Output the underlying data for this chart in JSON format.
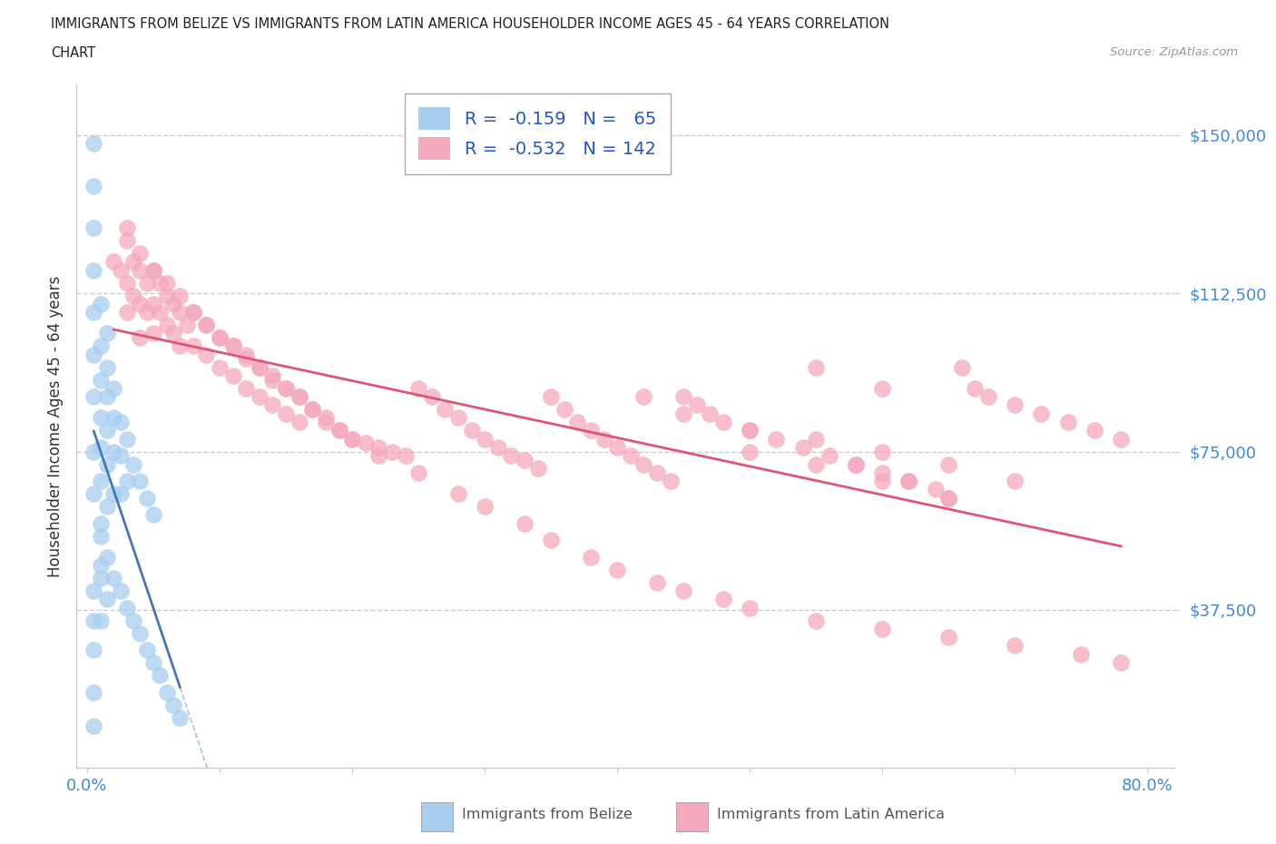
{
  "title_line1": "IMMIGRANTS FROM BELIZE VS IMMIGRANTS FROM LATIN AMERICA HOUSEHOLDER INCOME AGES 45 - 64 YEARS CORRELATION",
  "title_line2": "CHART",
  "source_text": "Source: ZipAtlas.com",
  "ylabel": "Householder Income Ages 45 - 64 years",
  "xlim": [
    -0.008,
    0.82
  ],
  "ylim": [
    0,
    162000
  ],
  "yticks": [
    37500,
    75000,
    112500,
    150000
  ],
  "ytick_labels": [
    "$37,500",
    "$75,000",
    "$112,500",
    "$150,000"
  ],
  "xticks": [
    0.0,
    0.1,
    0.2,
    0.3,
    0.4,
    0.5,
    0.6,
    0.7,
    0.8
  ],
  "xtick_labels": [
    "0.0%",
    "",
    "",
    "",
    "",
    "",
    "",
    "",
    "80.0%"
  ],
  "belize_color": "#a8cef0",
  "latin_color": "#f5a8bc",
  "belize_line_color": "#4477bb",
  "latin_line_color": "#dd5577",
  "legend_belize_R": "-0.159",
  "legend_belize_N": "65",
  "legend_latin_R": "-0.532",
  "legend_latin_N": "142",
  "background_color": "#ffffff",
  "grid_color": "#cccccc",
  "tick_color": "#4488dd",
  "belize_x": [
    0.005,
    0.005,
    0.005,
    0.005,
    0.005,
    0.005,
    0.005,
    0.005,
    0.005,
    0.01,
    0.01,
    0.01,
    0.01,
    0.01,
    0.01,
    0.01,
    0.01,
    0.015,
    0.015,
    0.015,
    0.015,
    0.015,
    0.015,
    0.02,
    0.02,
    0.02,
    0.02,
    0.025,
    0.025,
    0.025,
    0.03,
    0.03,
    0.035,
    0.04,
    0.045,
    0.05,
    0.005,
    0.005,
    0.005,
    0.005,
    0.005,
    0.01,
    0.01,
    0.01,
    0.015,
    0.015,
    0.02,
    0.025,
    0.03,
    0.035,
    0.04,
    0.045,
    0.05,
    0.055,
    0.06,
    0.065,
    0.07
  ],
  "belize_y": [
    148000,
    138000,
    128000,
    118000,
    108000,
    98000,
    88000,
    75000,
    65000,
    110000,
    100000,
    92000,
    83000,
    76000,
    68000,
    58000,
    48000,
    103000,
    95000,
    88000,
    80000,
    72000,
    62000,
    90000,
    83000,
    75000,
    65000,
    82000,
    74000,
    65000,
    78000,
    68000,
    72000,
    68000,
    64000,
    60000,
    42000,
    35000,
    28000,
    18000,
    10000,
    55000,
    45000,
    35000,
    50000,
    40000,
    45000,
    42000,
    38000,
    35000,
    32000,
    28000,
    25000,
    22000,
    18000,
    15000,
    12000
  ],
  "latin_x": [
    0.02,
    0.025,
    0.03,
    0.03,
    0.03,
    0.035,
    0.035,
    0.04,
    0.04,
    0.04,
    0.045,
    0.045,
    0.05,
    0.05,
    0.05,
    0.055,
    0.055,
    0.06,
    0.06,
    0.065,
    0.065,
    0.07,
    0.07,
    0.075,
    0.08,
    0.08,
    0.09,
    0.09,
    0.1,
    0.1,
    0.11,
    0.11,
    0.12,
    0.12,
    0.13,
    0.13,
    0.14,
    0.14,
    0.15,
    0.15,
    0.16,
    0.16,
    0.17,
    0.18,
    0.19,
    0.2,
    0.21,
    0.22,
    0.23,
    0.24,
    0.25,
    0.26,
    0.27,
    0.28,
    0.29,
    0.3,
    0.31,
    0.32,
    0.33,
    0.34,
    0.35,
    0.36,
    0.37,
    0.38,
    0.39,
    0.4,
    0.41,
    0.42,
    0.43,
    0.44,
    0.45,
    0.46,
    0.47,
    0.48,
    0.5,
    0.52,
    0.54,
    0.56,
    0.58,
    0.6,
    0.62,
    0.64,
    0.65,
    0.66,
    0.67,
    0.68,
    0.7,
    0.72,
    0.74,
    0.76,
    0.78,
    0.03,
    0.04,
    0.05,
    0.06,
    0.07,
    0.08,
    0.09,
    0.1,
    0.11,
    0.12,
    0.13,
    0.14,
    0.15,
    0.16,
    0.17,
    0.18,
    0.19,
    0.2,
    0.22,
    0.25,
    0.28,
    0.3,
    0.33,
    0.35,
    0.38,
    0.4,
    0.43,
    0.45,
    0.48,
    0.5,
    0.55,
    0.6,
    0.65,
    0.7,
    0.75,
    0.78,
    0.5,
    0.55,
    0.6,
    0.65,
    0.7,
    0.5,
    0.55,
    0.6,
    0.65,
    0.42,
    0.45,
    0.58,
    0.62,
    0.55,
    0.6
  ],
  "latin_y": [
    120000,
    118000,
    125000,
    115000,
    108000,
    120000,
    112000,
    118000,
    110000,
    102000,
    115000,
    108000,
    118000,
    110000,
    103000,
    115000,
    108000,
    112000,
    105000,
    110000,
    103000,
    108000,
    100000,
    105000,
    108000,
    100000,
    105000,
    98000,
    102000,
    95000,
    100000,
    93000,
    98000,
    90000,
    95000,
    88000,
    93000,
    86000,
    90000,
    84000,
    88000,
    82000,
    85000,
    83000,
    80000,
    78000,
    77000,
    76000,
    75000,
    74000,
    90000,
    88000,
    85000,
    83000,
    80000,
    78000,
    76000,
    74000,
    73000,
    71000,
    88000,
    85000,
    82000,
    80000,
    78000,
    76000,
    74000,
    72000,
    70000,
    68000,
    88000,
    86000,
    84000,
    82000,
    80000,
    78000,
    76000,
    74000,
    72000,
    70000,
    68000,
    66000,
    64000,
    95000,
    90000,
    88000,
    86000,
    84000,
    82000,
    80000,
    78000,
    128000,
    122000,
    118000,
    115000,
    112000,
    108000,
    105000,
    102000,
    100000,
    97000,
    95000,
    92000,
    90000,
    88000,
    85000,
    82000,
    80000,
    78000,
    74000,
    70000,
    65000,
    62000,
    58000,
    54000,
    50000,
    47000,
    44000,
    42000,
    40000,
    38000,
    35000,
    33000,
    31000,
    29000,
    27000,
    25000,
    80000,
    78000,
    75000,
    72000,
    68000,
    75000,
    72000,
    68000,
    64000,
    88000,
    84000,
    72000,
    68000,
    95000,
    90000
  ]
}
